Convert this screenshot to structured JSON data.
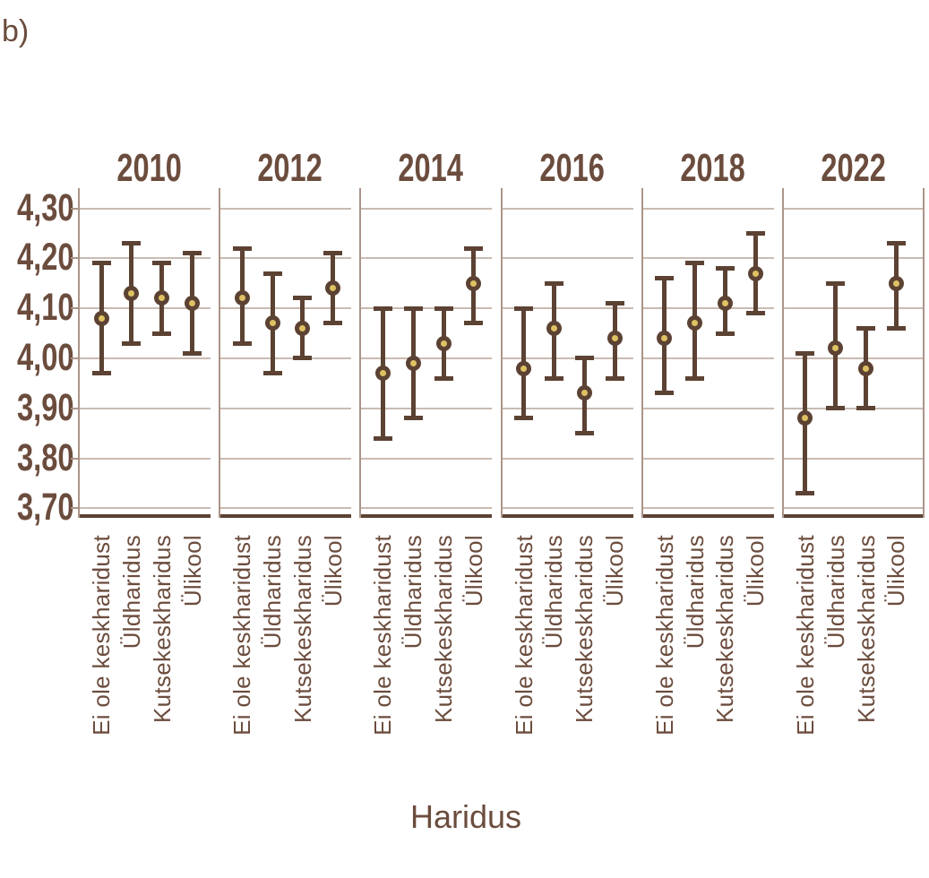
{
  "figure_label": "b)",
  "colors": {
    "text_brown": "#6b4c3d",
    "bar_brown": "#5c4233",
    "marker_gold": "#dec263",
    "gridline": "#c9bbb1",
    "panel_border": "#ab9488",
    "baseline": "#5c4233",
    "background": "#ffffff"
  },
  "axis": {
    "x_title": "Haridus",
    "y_tick_labels": [
      "4,30",
      "4,20",
      "4,10",
      "4,00",
      "3,90",
      "3,80",
      "3,70"
    ],
    "y_tick_values": [
      4.3,
      4.2,
      4.1,
      4.0,
      3.9,
      3.8,
      3.7
    ]
  },
  "chart_data": {
    "type": "scatter",
    "subtype": "point-estimates-with-error-bars",
    "title": "",
    "xlabel": "Haridus",
    "ylabel": "",
    "ylim": [
      3.65,
      4.35
    ],
    "grid": true,
    "facet_variable": "year",
    "categories": [
      "Ei ole keskharidust",
      "Üldharidus",
      "Kutsekeskharidus",
      "Ülikool"
    ],
    "facets": [
      {
        "year": "2010",
        "points": [
          {
            "category": "Ei ole keskharidust",
            "value": 4.08,
            "ci_low": 3.97,
            "ci_high": 4.19
          },
          {
            "category": "Üldharidus",
            "value": 4.13,
            "ci_low": 4.03,
            "ci_high": 4.23
          },
          {
            "category": "Kutsekeskharidus",
            "value": 4.12,
            "ci_low": 4.05,
            "ci_high": 4.19
          },
          {
            "category": "Ülikool",
            "value": 4.11,
            "ci_low": 4.01,
            "ci_high": 4.21
          }
        ]
      },
      {
        "year": "2012",
        "points": [
          {
            "category": "Ei ole keskharidust",
            "value": 4.12,
            "ci_low": 4.03,
            "ci_high": 4.22
          },
          {
            "category": "Üldharidus",
            "value": 4.07,
            "ci_low": 3.97,
            "ci_high": 4.17
          },
          {
            "category": "Kutsekeskharidus",
            "value": 4.06,
            "ci_low": 4.0,
            "ci_high": 4.12
          },
          {
            "category": "Ülikool",
            "value": 4.14,
            "ci_low": 4.07,
            "ci_high": 4.21
          }
        ]
      },
      {
        "year": "2014",
        "points": [
          {
            "category": "Ei ole keskharidust",
            "value": 3.97,
            "ci_low": 3.84,
            "ci_high": 4.1
          },
          {
            "category": "Üldharidus",
            "value": 3.99,
            "ci_low": 3.88,
            "ci_high": 4.1
          },
          {
            "category": "Kutsekeskharidus",
            "value": 4.03,
            "ci_low": 3.96,
            "ci_high": 4.1
          },
          {
            "category": "Ülikool",
            "value": 4.15,
            "ci_low": 4.07,
            "ci_high": 4.22
          }
        ]
      },
      {
        "year": "2016",
        "points": [
          {
            "category": "Ei ole keskharidust",
            "value": 3.98,
            "ci_low": 3.88,
            "ci_high": 4.1
          },
          {
            "category": "Üldharidus",
            "value": 4.06,
            "ci_low": 3.96,
            "ci_high": 4.15
          },
          {
            "category": "Kutsekeskharidus",
            "value": 3.93,
            "ci_low": 3.85,
            "ci_high": 4.0
          },
          {
            "category": "Ülikool",
            "value": 4.04,
            "ci_low": 3.96,
            "ci_high": 4.11
          }
        ]
      },
      {
        "year": "2018",
        "points": [
          {
            "category": "Ei ole keskharidust",
            "value": 4.04,
            "ci_low": 3.93,
            "ci_high": 4.16
          },
          {
            "category": "Üldharidus",
            "value": 4.07,
            "ci_low": 3.96,
            "ci_high": 4.19
          },
          {
            "category": "Kutsekeskharidus",
            "value": 4.11,
            "ci_low": 4.05,
            "ci_high": 4.18
          },
          {
            "category": "Ülikool",
            "value": 4.17,
            "ci_low": 4.09,
            "ci_high": 4.25
          }
        ]
      },
      {
        "year": "2022",
        "points": [
          {
            "category": "Ei ole keskharidust",
            "value": 3.88,
            "ci_low": 3.73,
            "ci_high": 4.01
          },
          {
            "category": "Üldharidus",
            "value": 4.02,
            "ci_low": 3.9,
            "ci_high": 4.15
          },
          {
            "category": "Kutsekeskharidus",
            "value": 3.98,
            "ci_low": 3.9,
            "ci_high": 4.06
          },
          {
            "category": "Ülikool",
            "value": 4.15,
            "ci_low": 4.06,
            "ci_high": 4.23
          }
        ]
      }
    ]
  }
}
